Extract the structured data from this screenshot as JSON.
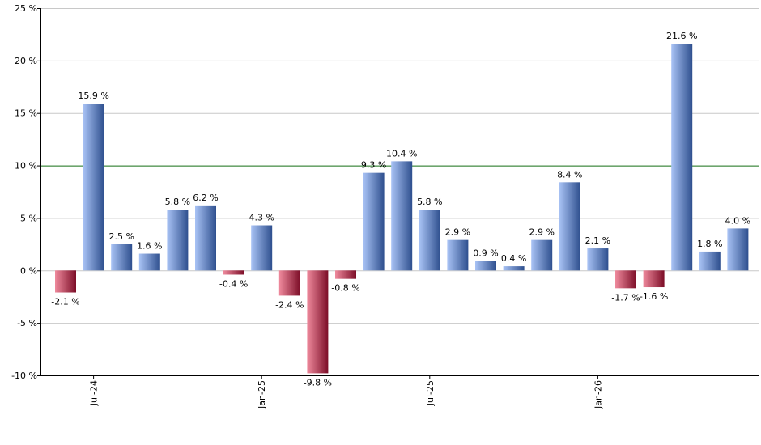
{
  "chart_data": {
    "type": "bar",
    "y_ticks": [
      -10,
      -5,
      0,
      5,
      10,
      15,
      20,
      25
    ],
    "y_tick_suffix": " %",
    "ylim": [
      -10,
      25
    ],
    "grid": true,
    "reference_line": 10,
    "x_labels": [
      {
        "label": "Jul-24",
        "index": 1
      },
      {
        "label": "Jan-25",
        "index": 7
      },
      {
        "label": "Jul-25",
        "index": 13
      },
      {
        "label": "Jan-26",
        "index": 19
      }
    ],
    "values": [
      -2.1,
      15.9,
      2.5,
      1.6,
      5.8,
      6.2,
      -0.4,
      4.3,
      -2.4,
      -9.8,
      -0.8,
      9.3,
      10.4,
      5.8,
      2.9,
      0.9,
      0.4,
      2.9,
      8.4,
      2.1,
      -1.7,
      -1.6,
      21.6,
      1.8,
      4.0
    ],
    "labels": [
      "-2.1 %",
      "15.9 %",
      "2.5 %",
      "1.6 %",
      "5.8 %",
      "6.2 %",
      "-0.4 %",
      "4.3 %",
      "-2.4 %",
      "-9.8 %",
      "-0.8 %",
      "9.3 %",
      "10.4 %",
      "5.8 %",
      "2.9 %",
      "0.9 %",
      "0.4 %",
      "2.9 %",
      "8.4 %",
      "2.1 %",
      "-1.7 %",
      "-1.6 %",
      "21.6 %",
      "1.8 %",
      "4.0 %"
    ],
    "colors": {
      "positive_light": "#a9c3f5",
      "positive_dark": "#2e4f8e",
      "negative_light": "#ef8a9d",
      "negative_dark": "#7c0d27",
      "gridline": "#c8c8c8",
      "reference": "#1f7a1f",
      "axis": "#000000"
    }
  }
}
